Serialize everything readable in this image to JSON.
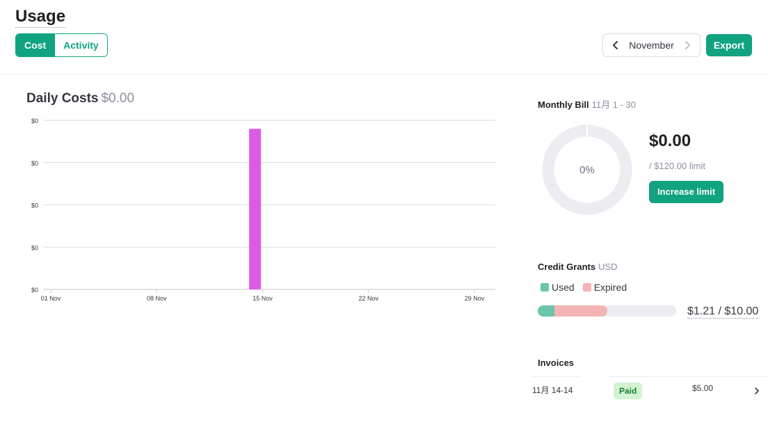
{
  "header": {
    "title": "Usage",
    "tabs": [
      {
        "label": "Cost",
        "active": true
      },
      {
        "label": "Activity",
        "active": false
      }
    ],
    "month": "November",
    "export_label": "Export"
  },
  "daily_costs": {
    "title": "Daily Costs",
    "total": "$0.00"
  },
  "chart_data": {
    "type": "bar",
    "x_tick_labels": [
      "01 Nov",
      "08 Nov",
      "15 Nov",
      "22 Nov",
      "29 Nov"
    ],
    "y_tick_labels": [
      "$0",
      "$0",
      "$0",
      "$0",
      "$0"
    ],
    "days": 30,
    "bars": [
      {
        "day": 14,
        "value": 0.95
      }
    ],
    "ylim": [
      0,
      1
    ],
    "grid": true,
    "bar_color": "#dc5be6"
  },
  "monthly_bill": {
    "title": "Monthly Bill",
    "range": "11月 1 - 30",
    "percent_label": "0%",
    "percent": 0,
    "amount": "$0.00",
    "limit": "/ $120.00 limit",
    "increase_label": "Increase limit"
  },
  "credit_grants": {
    "title": "Credit Grants",
    "currency": "USD",
    "legend": [
      {
        "label": "Used",
        "color": "#6bc5a8"
      },
      {
        "label": "Expired",
        "color": "#f4b4b4"
      }
    ],
    "used_fraction": 0.121,
    "expired_fraction": 0.38,
    "value": "$1.21 / $10.00"
  },
  "invoices": {
    "title": "Invoices",
    "rows": [
      {
        "date": "11月 14-14",
        "status": "Paid",
        "amount": "$5.00"
      }
    ]
  },
  "colors": {
    "accent": "#10a37f",
    "donut_track": "#ececf1"
  }
}
